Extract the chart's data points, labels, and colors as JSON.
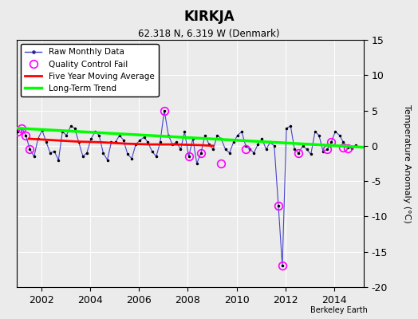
{
  "title": "KIRKJA",
  "subtitle": "62.318 N, 6.319 W (Denmark)",
  "ylabel": "Temperature Anomaly (°C)",
  "credit": "Berkeley Earth",
  "xlim": [
    2001.0,
    2015.2
  ],
  "ylim": [
    -20,
    15
  ],
  "yticks": [
    -20,
    -15,
    -10,
    -5,
    0,
    5,
    10,
    15
  ],
  "xticks": [
    2002,
    2004,
    2006,
    2008,
    2010,
    2012,
    2014
  ],
  "bg_color": "#ebebeb",
  "line_color": "#4444cc",
  "raw_x": [
    2001.04,
    2001.21,
    2001.37,
    2001.54,
    2001.71,
    2001.87,
    2002.04,
    2002.21,
    2002.37,
    2002.54,
    2002.71,
    2002.87,
    2003.04,
    2003.21,
    2003.37,
    2003.54,
    2003.71,
    2003.87,
    2004.04,
    2004.21,
    2004.37,
    2004.54,
    2004.71,
    2004.87,
    2005.04,
    2005.21,
    2005.37,
    2005.54,
    2005.71,
    2005.87,
    2006.04,
    2006.21,
    2006.37,
    2006.54,
    2006.71,
    2006.87,
    2007.04,
    2007.21,
    2007.37,
    2007.54,
    2007.71,
    2007.87,
    2008.04,
    2008.21,
    2008.37,
    2008.54,
    2008.71,
    2008.87,
    2009.04,
    2009.21,
    2009.37,
    2009.54,
    2009.71,
    2009.87,
    2010.04,
    2010.21,
    2010.37,
    2010.54,
    2010.71,
    2010.87,
    2011.04,
    2011.21,
    2011.37,
    2011.54,
    2011.71,
    2011.87,
    2012.04,
    2012.21,
    2012.37,
    2012.54,
    2012.71,
    2012.87,
    2013.04,
    2013.21,
    2013.37,
    2013.54,
    2013.71,
    2013.87,
    2014.04,
    2014.21,
    2014.37,
    2014.54,
    2014.71,
    2014.87
  ],
  "raw_y": [
    2.0,
    2.5,
    1.5,
    -0.5,
    -1.5,
    1.0,
    2.2,
    0.5,
    -1.0,
    -0.8,
    -2.0,
    2.0,
    1.5,
    2.8,
    2.5,
    0.5,
    -1.5,
    -1.0,
    1.0,
    2.0,
    1.5,
    -1.0,
    -2.0,
    0.5,
    0.5,
    1.5,
    0.8,
    -1.2,
    -1.8,
    0.2,
    0.8,
    1.2,
    0.5,
    -0.8,
    -1.5,
    0.5,
    5.0,
    1.5,
    0.2,
    0.5,
    -0.5,
    2.0,
    -1.5,
    1.0,
    -2.5,
    -1.0,
    1.5,
    0.2,
    -0.5,
    1.5,
    1.0,
    -0.5,
    -1.0,
    0.5,
    1.5,
    2.0,
    0.0,
    -0.5,
    -1.0,
    0.2,
    1.0,
    -0.5,
    0.5,
    0.0,
    -8.5,
    -17.0,
    2.5,
    2.8,
    -0.5,
    -1.0,
    0.0,
    -0.5,
    -1.2,
    2.0,
    1.5,
    -0.8,
    -0.5,
    0.5,
    2.0,
    1.5,
    0.5,
    -0.2,
    -0.3,
    0.1
  ],
  "qc_fail_x": [
    2001.04,
    2001.21,
    2001.37,
    2001.54,
    2007.04,
    2008.04,
    2008.54,
    2009.37,
    2010.37,
    2011.71,
    2011.87,
    2012.54,
    2013.71,
    2013.87,
    2014.37,
    2014.54
  ],
  "qc_fail_y": [
    2.0,
    2.5,
    1.5,
    -0.5,
    5.0,
    -1.5,
    -1.0,
    -2.5,
    -0.5,
    -8.5,
    -17.0,
    -1.0,
    -0.5,
    0.5,
    -0.2,
    -0.3
  ],
  "moving_avg_x": [
    2001.5,
    2002.5,
    2003.5,
    2004.5,
    2005.5,
    2006.5,
    2007.5,
    2008.5,
    2009.04
  ],
  "moving_avg_y": [
    1.0,
    0.8,
    0.6,
    0.5,
    0.3,
    0.2,
    0.2,
    0.1,
    0.0
  ],
  "trend_x": [
    2001.0,
    2015.2
  ],
  "trend_y": [
    2.5,
    -0.2
  ]
}
